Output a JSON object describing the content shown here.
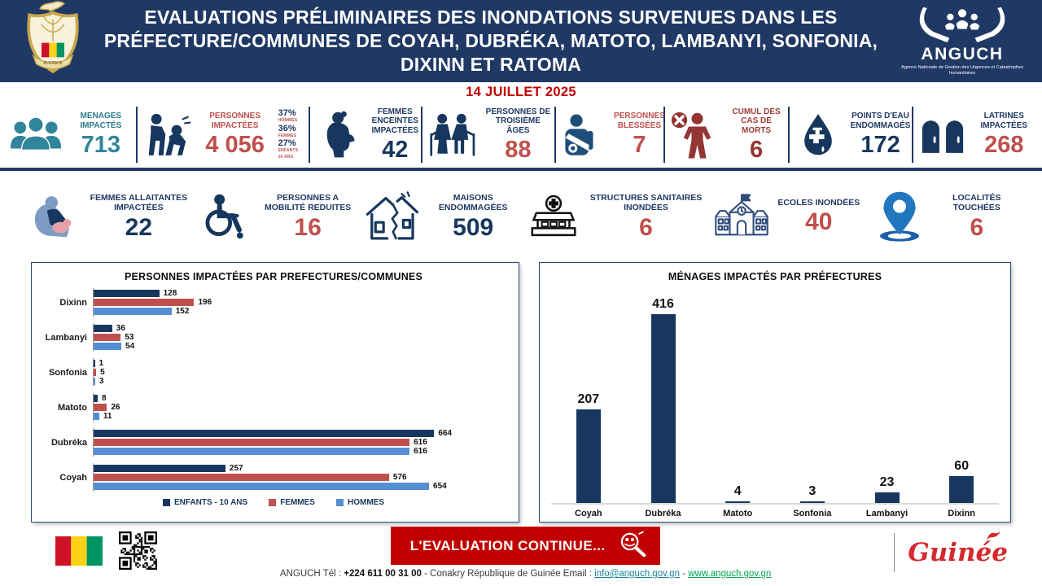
{
  "palette": {
    "header_navy": "#1F3864",
    "dark_navy": "#17375E",
    "teal": "#31859B",
    "teal_dark": "#2A7B8C",
    "brick_red": "#C0504D",
    "maroon": "#943634",
    "date_red": "#C00000",
    "banner_red": "#C00000",
    "bar_blue": "#558ED5",
    "flag_red": "#CE1126",
    "flag_yellow": "#FCD116",
    "flag_green": "#009460",
    "brand_red": "#D6292E"
  },
  "header": {
    "title": "EVALUATIONS PRÉLIMINAIRES DES INONDATIONS SURVENUES DANS LES PRÉFECTURE/COMMUNES DE COYAH, DUBRÉKA, MATOTO, LAMBANYI, SONFONIA, DIXINN ET RATOMA",
    "coat_of_arms_motto": "JUSTICE",
    "logo": {
      "name": "ANGUCH",
      "tagline": "Agence Nationale de Gestion des Urgences et Catastrophes humanitaires"
    }
  },
  "date": "14 JUILLET 2025",
  "stats_row1": [
    {
      "label": "MENAGES IMPACTÉS",
      "value": "713",
      "icon": "people-group",
      "label_color": "#2A7B8C",
      "value_color": "#31859B",
      "icon_color": "#31859B"
    },
    {
      "label": "PERSONNES IMPACTÉES",
      "value": "4 056",
      "icon": "person-assist",
      "label_color": "#C0504D",
      "value_color": "#C0504D",
      "icon_color": "#17375E",
      "breakdown": [
        {
          "pct": "37%",
          "label": "HOMMES"
        },
        {
          "pct": "36%",
          "label": "FEMMES"
        },
        {
          "pct": "27%",
          "label": "ENFANTS - 10 ANS"
        }
      ]
    },
    {
      "label": "FEMMES ENCEINTES IMPACTÉES",
      "value": "42",
      "icon": "pregnant-woman",
      "label_color": "#1F3864",
      "value_color": "#17375E",
      "icon_color": "#17375E"
    },
    {
      "label": "PERSONNES DE TROISIÈME ÂGES",
      "value": "88",
      "icon": "elderly-couple",
      "label_color": "#1F3864",
      "value_color": "#C0504D",
      "icon_color": "#17375E"
    },
    {
      "label": "PERSONNES BLESSÉES",
      "value": "7",
      "icon": "injured-person",
      "label_color": "#C0504D",
      "value_color": "#C0504D",
      "icon_color": "#1F4E79"
    },
    {
      "label": "CUMUL DES CAS DE MORTS",
      "value": "6",
      "icon": "death-person",
      "label_color": "#9E3B36",
      "value_color": "#943634",
      "icon_color": "#943634"
    },
    {
      "label": "POINTS D'EAU ENDOMMAGÉS",
      "value": "172",
      "icon": "water-tap",
      "label_color": "#1F3864",
      "value_color": "#17375E",
      "icon_color": "#17375E"
    },
    {
      "label": "LATRINES IMPACTÉES",
      "value": "268",
      "icon": "latrines",
      "label_color": "#1F3864",
      "value_color": "#C0504D",
      "icon_color": "#17375E"
    }
  ],
  "stats_row2": [
    {
      "label": "FEMMES ALLAITANTES IMPACTÉES",
      "value": "22",
      "icon": "nursing-mother",
      "label_color": "#1F3864",
      "value_color": "#17375E",
      "icon_color": "#7C9CC4"
    },
    {
      "label": "PERSONNES A MOBILITÉ REDUITES",
      "value": "16",
      "icon": "wheelchair",
      "label_color": "#1F3864",
      "value_color": "#C0504D",
      "icon_color": "#17375E"
    },
    {
      "label": "MAISONS ENDOMMAGÉES",
      "value": "509",
      "icon": "cracked-house",
      "label_color": "#1F3864",
      "value_color": "#17375E",
      "icon_color": "#17375E"
    },
    {
      "label": "STRUCTURES SANITAIRES INONDÉES",
      "value": "6",
      "icon": "hospital",
      "label_color": "#1F3864",
      "value_color": "#C0504D",
      "icon_color": "#111111"
    },
    {
      "label": "ECOLES INONDÉES",
      "value": "40",
      "icon": "school",
      "label_color": "#1F3864",
      "value_color": "#C0504D",
      "icon_color": "#2F4D7E"
    },
    {
      "label": "LOCALITÉS TOUCHÉES",
      "value": "6",
      "icon": "map-pin",
      "label_color": "#1F3864",
      "value_color": "#C0504D",
      "icon_color": "#2176C0"
    }
  ],
  "chart_data": [
    {
      "type": "bar",
      "orientation": "horizontal",
      "title": "PERSONNES IMPACTÉES PAR PREFECTURES/COMMUNES",
      "categories": [
        "Dixinn",
        "Lambanyi",
        "Sonfonia",
        "Matoto",
        "Dubréka",
        "Coyah"
      ],
      "series": [
        {
          "name": "ENFANTS - 10 ANS",
          "color": "#17375E",
          "values": [
            128,
            36,
            1,
            8,
            664,
            257
          ]
        },
        {
          "name": "FEMMES",
          "color": "#C0504D",
          "values": [
            196,
            53,
            5,
            26,
            616,
            576
          ]
        },
        {
          "name": "HOMMES",
          "color": "#558ED5",
          "values": [
            152,
            54,
            3,
            11,
            616,
            654
          ]
        }
      ],
      "xlim": [
        0,
        700
      ],
      "grid": false,
      "data_labels": true,
      "legend_position": "bottom"
    },
    {
      "type": "bar",
      "orientation": "vertical",
      "title": "MÉNAGES IMPACTÉS PAR PRÉFECTURES",
      "categories": [
        "Coyah",
        "Dubréka",
        "Matoto",
        "Sonfonia",
        "Lambanyi",
        "Dixinn"
      ],
      "values": [
        207,
        416,
        4,
        3,
        23,
        60
      ],
      "bar_color": "#17375E",
      "ylim": [
        0,
        450
      ],
      "grid": false,
      "data_labels": true,
      "legend_position": "none"
    }
  ],
  "footer": {
    "banner_label": "L'EVALUATION CONTINUE...",
    "contact": {
      "prefix": "ANGUCH Tél : ",
      "phone": "+224 611 00 31 00",
      "middle": " - Conakry République de Guinée  Email : ",
      "email": "info@anguch.gov.gn",
      "separator": " - ",
      "website": "www.anguch.gov.gn"
    },
    "brand": "Guinée"
  }
}
